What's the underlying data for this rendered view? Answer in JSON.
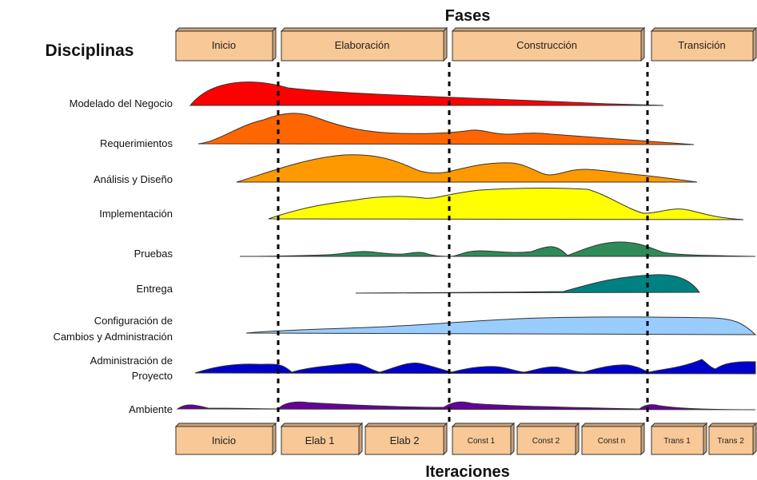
{
  "header": {
    "fases": "Fases",
    "disciplinas": "Disciplinas",
    "iteraciones": "Iteraciones"
  },
  "phases": [
    {
      "label": "Inicio"
    },
    {
      "label": "Elaboración"
    },
    {
      "label": "Construcción"
    },
    {
      "label": "Transición"
    }
  ],
  "iterations": [
    {
      "label": "Inicio"
    },
    {
      "label": "Elab 1"
    },
    {
      "label": "Elab 2"
    },
    {
      "label": "Const 1"
    },
    {
      "label": "Const 2"
    },
    {
      "label": "Const n"
    },
    {
      "label": "Trans 1"
    },
    {
      "label": "Trans 2"
    }
  ],
  "disciplines": [
    {
      "lines": [
        "Modelado del Negocio"
      ],
      "color": "#ff0000"
    },
    {
      "lines": [
        "Requerimientos"
      ],
      "color": "#ff6600"
    },
    {
      "lines": [
        "Análisis y Diseño"
      ],
      "color": "#ff9900"
    },
    {
      "lines": [
        "Implementación"
      ],
      "color": "#ffff00"
    },
    {
      "lines": [
        "Pruebas"
      ],
      "color": "#2e8b57"
    },
    {
      "lines": [
        "Entrega"
      ],
      "color": "#008080"
    },
    {
      "lines": [
        "Configuración de",
        "Cambios y Administración"
      ],
      "color": "#99ccff"
    },
    {
      "lines": [
        "Administración de",
        "Proyecto"
      ],
      "color": "#0000cc"
    },
    {
      "lines": [
        "Ambiente"
      ],
      "color": "#660099"
    }
  ],
  "colors": {
    "box_fill": "#f8c896",
    "box_side": "#caa27a",
    "box_stroke": "#333333"
  }
}
